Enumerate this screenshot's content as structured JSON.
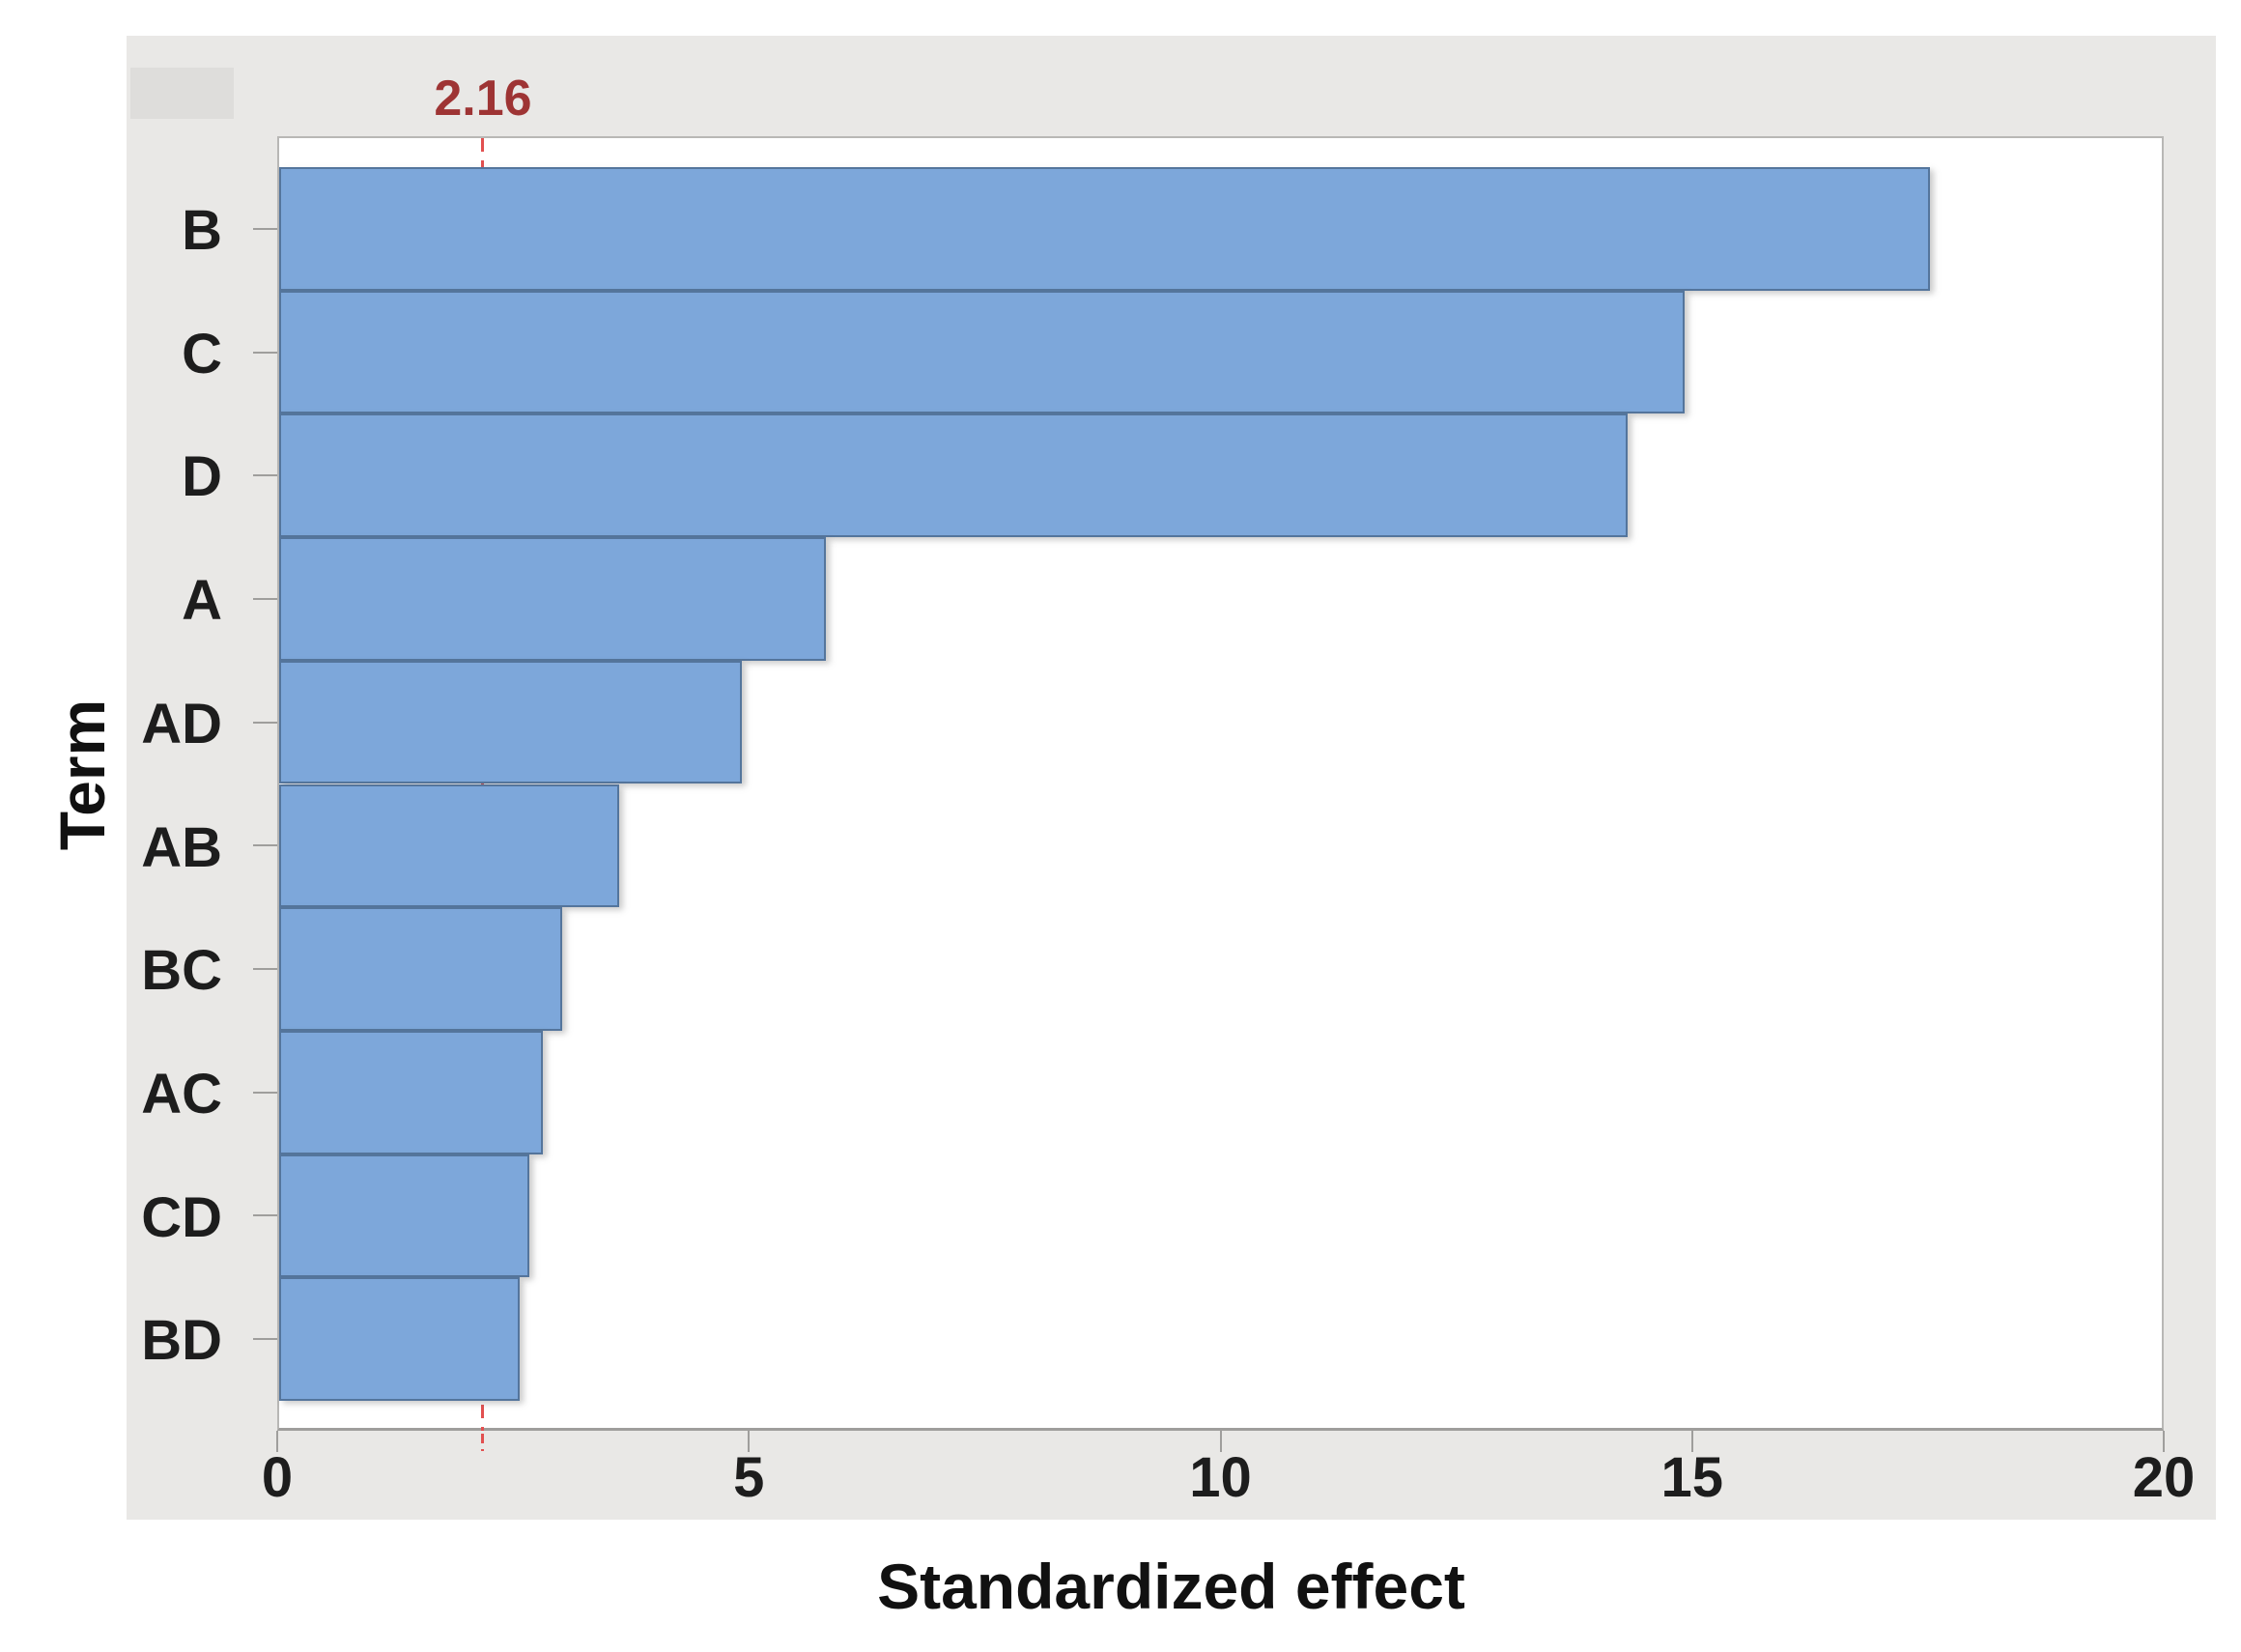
{
  "chart_data": {
    "type": "bar",
    "orientation": "horizontal",
    "title": "",
    "categories": [
      "B",
      "C",
      "D",
      "A",
      "AD",
      "AB",
      "BC",
      "AC",
      "CD",
      "BD"
    ],
    "values": [
      17.5,
      14.9,
      14.3,
      5.8,
      4.9,
      3.6,
      3.0,
      2.8,
      2.65,
      2.55
    ],
    "xlabel": "Standardized effect",
    "ylabel": "Term",
    "xlim": [
      0,
      20
    ],
    "x_ticks": [
      0,
      5,
      10,
      15,
      20
    ],
    "grid": false,
    "legend": "none",
    "reference_line": {
      "value": 2.16,
      "label": "2.16"
    },
    "colors": {
      "bar_fill": "#7da7da",
      "bar_border": "#54759c",
      "figure_background": "#e9e8e6",
      "plot_background": "#ffffff",
      "axis_line": "#9f9e9c",
      "text": "#1d1d1d",
      "reference_line": "#e25050",
      "reference_label": "#9e3434"
    }
  }
}
